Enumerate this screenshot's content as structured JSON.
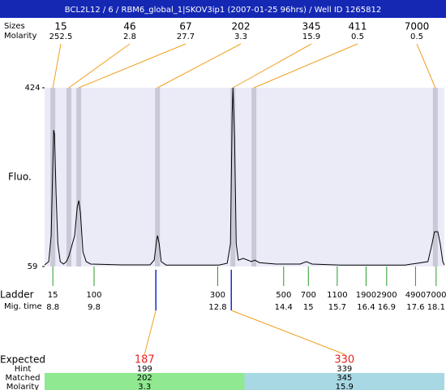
{
  "header": "BCL2L12 / 6 / RBM6_global_1|SKOV3ip1 (2007-01-25 96hrs) / Well ID 1265812",
  "chart_data": {
    "type": "line",
    "y_label": "Fluo.",
    "color": "#000000",
    "xlim": [
      8.6,
      18.3
    ],
    "ylim": [
      59,
      424
    ],
    "yticks": [
      59,
      424
    ],
    "x": [
      8.6,
      8.7,
      8.76,
      8.8,
      8.82,
      8.84,
      8.88,
      8.92,
      8.98,
      9.06,
      9.13,
      9.19,
      9.33,
      9.39,
      9.43,
      9.47,
      9.53,
      9.61,
      9.72,
      10.47,
      11.16,
      11.26,
      11.32,
      11.34,
      11.38,
      11.43,
      11.55,
      12.83,
      13.03,
      13.11,
      13.15,
      13.17,
      13.21,
      13.25,
      13.3,
      13.42,
      13.62,
      13.7,
      13.81,
      14.21,
      14.8,
      14.95,
      15.09,
      15.78,
      17.35,
      17.9,
      18.0,
      18.06,
      18.14,
      18.2,
      18.26,
      18.3
    ],
    "values": [
      62.3,
      69,
      122.1,
      271.4,
      337.7,
      329.4,
      205,
      105.5,
      69,
      64,
      69,
      80.6,
      122,
      180,
      193.6,
      168.5,
      88.9,
      69,
      64,
      62.3,
      62.3,
      72.3,
      113.7,
      122,
      105.5,
      69,
      62,
      62,
      65.6,
      105.5,
      371,
      424,
      321,
      105.5,
      72,
      75.6,
      69,
      72,
      67,
      64,
      64,
      69,
      64,
      62,
      62,
      69,
      105.5,
      130,
      130,
      105.5,
      69,
      62
    ]
  },
  "peaks": {
    "size_label": "Sizes",
    "molarity_label": "Molarity",
    "items": [
      {
        "size": 15,
        "molarity": 252.5,
        "time": 8.8
      },
      {
        "size": 46,
        "molarity": 2.8,
        "time": 9.19
      },
      {
        "size": 67,
        "molarity": 27.7,
        "time": 9.43
      },
      {
        "size": 202,
        "molarity": 3.3,
        "time": 11.34
      },
      {
        "size": 345,
        "molarity": 15.9,
        "time": 13.17
      },
      {
        "size": 411,
        "molarity": 0.5,
        "time": 13.68
      },
      {
        "size": 7000,
        "molarity": 0.5,
        "time": 18.08
      }
    ]
  },
  "ladder": {
    "label": "Ladder",
    "time_label": "Mig. time",
    "items": [
      {
        "size": 15,
        "time": 8.8
      },
      {
        "size": 100,
        "time": 9.8
      },
      {
        "size": 300,
        "time": 12.8
      },
      {
        "size": 500,
        "time": 14.4
      },
      {
        "size": 700,
        "time": 15
      },
      {
        "size": 1100,
        "time": 15.7
      },
      {
        "size": 1900,
        "time": 16.4
      },
      {
        "size": 2900,
        "time": 16.9
      },
      {
        "size": 4900,
        "time": 17.6
      },
      {
        "size": 7000,
        "time": 18.1
      }
    ]
  },
  "expected": {
    "label": "Expected",
    "hint_label": "Hint",
    "matched_label": "Matched",
    "molarity_label": "Molarity",
    "items": [
      {
        "expected": 187,
        "time": 11.3,
        "hint": 199,
        "matched": 202,
        "molarity": 3.3
      },
      {
        "expected": 330,
        "time": 13.13,
        "hint": 339,
        "matched": 345,
        "molarity": 15.9
      }
    ]
  }
}
